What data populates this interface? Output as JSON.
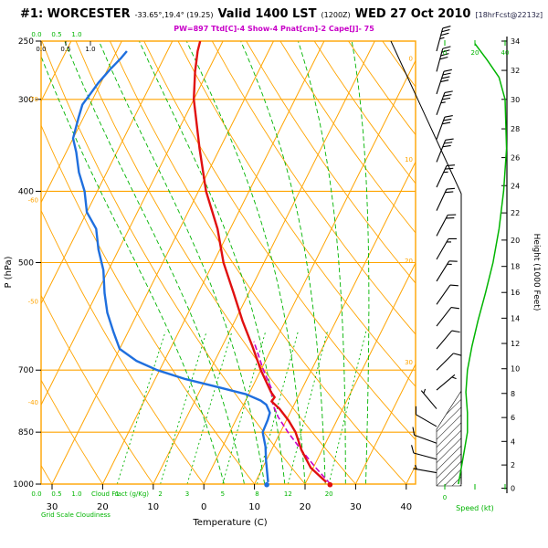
{
  "header": {
    "station": "#1: WORCESTER",
    "coords": "-33.65°,19.4° (19.25)",
    "valid": "Valid 1400 LST",
    "valid_utc": "(1200Z)",
    "date": "WED 27 Oct 2010",
    "forecast": "[18hrFcst@2213z]",
    "indices": "PW=897 Ttd[C]-4 Show-4 Pnat[cm]-2 Cape[J]- 75"
  },
  "axes": {
    "pressure_label": "P (hPa)",
    "temperature_label": "Temperature (C)",
    "height_label": "Height (1000 Feet)",
    "speed_label": "Speed (kt)",
    "cloud_scale_values": [
      "0.0",
      "0.5",
      "1.0"
    ],
    "cloud_caption_1": "Cloud Fract (g/Kg)",
    "cloud_caption_2": "Grid Scale Cloudiness"
  },
  "colors": {
    "grid": "#ffa400",
    "aux_green": "#00b400",
    "temperature": "#e01010",
    "dewpoint": "#1f6fde",
    "parcel": "#c800c8",
    "axis": "#000000"
  },
  "chart_data": {
    "type": "line",
    "subtype": "skew-t-log-p sounding",
    "title": "#1: WORCESTER Valid 1400 LST (1200Z) WED 27 Oct 2010",
    "pressure_axis": {
      "label": "P (hPa)",
      "range": [
        250,
        1000
      ],
      "ticks": [
        250,
        300,
        400,
        500,
        700,
        850,
        1000
      ],
      "gridlines": [
        300,
        400,
        500,
        700,
        850
      ]
    },
    "temp_axis": {
      "label": "Temperature (C)",
      "ticks": [
        -30,
        -20,
        -10,
        0,
        10,
        20,
        30,
        40
      ],
      "tick_labels": [
        "30",
        "20",
        "10",
        "0",
        "10",
        "20",
        "30",
        "40"
      ]
    },
    "isotherm_step": 10,
    "isotherm_edge_labels_left": [
      -40,
      -50,
      -60,
      -70
    ],
    "isotherm_edge_labels_right": [
      0,
      10,
      20,
      30
    ],
    "dry_adiabats_theta_c": [
      -30,
      -20,
      -10,
      0,
      10,
      20,
      30,
      40,
      50,
      60,
      70,
      80,
      90,
      100,
      110,
      120,
      130
    ],
    "moist_adiabats_thetaw_c": [
      4,
      8,
      12,
      16,
      20,
      24,
      28,
      32
    ],
    "mixing_ratio_g_kg": [
      1,
      2,
      3,
      5,
      8,
      12,
      20
    ],
    "height_ticks_kft": [
      [
        0,
        1013
      ],
      [
        2,
        942
      ],
      [
        4,
        875
      ],
      [
        6,
        812
      ],
      [
        8,
        753
      ],
      [
        10,
        697
      ],
      [
        12,
        644
      ],
      [
        14,
        595
      ],
      [
        16,
        549
      ],
      [
        18,
        506
      ],
      [
        20,
        466
      ],
      [
        22,
        428
      ],
      [
        24,
        393
      ],
      [
        26,
        360
      ],
      [
        28,
        329
      ],
      [
        30,
        300
      ],
      [
        32,
        274
      ],
      [
        34,
        250
      ]
    ],
    "speed_ticks_kt": [
      0,
      20,
      40
    ],
    "temperature_profile": [
      [
        994,
        24
      ],
      [
        950,
        19.5
      ],
      [
        900,
        16
      ],
      [
        850,
        13
      ],
      [
        820,
        10.5
      ],
      [
        790,
        7.5
      ],
      [
        772,
        5.2
      ],
      [
        762,
        5.4
      ],
      [
        750,
        4.2
      ],
      [
        700,
        0
      ],
      [
        650,
        -4
      ],
      [
        600,
        -8.5
      ],
      [
        550,
        -13
      ],
      [
        500,
        -18
      ],
      [
        450,
        -22.5
      ],
      [
        400,
        -28.5
      ],
      [
        350,
        -34
      ],
      [
        300,
        -40
      ],
      [
        275,
        -42.5
      ],
      [
        258,
        -44
      ],
      [
        250,
        -44.5
      ]
    ],
    "dewpoint_profile": [
      [
        994,
        12.5
      ],
      [
        930,
        10
      ],
      [
        890,
        8.5
      ],
      [
        850,
        6.5
      ],
      [
        818,
        6.3
      ],
      [
        800,
        6
      ],
      [
        780,
        4.5
      ],
      [
        770,
        3
      ],
      [
        755,
        -0.5
      ],
      [
        739,
        -6.5
      ],
      [
        720,
        -14
      ],
      [
        700,
        -20.5
      ],
      [
        680,
        -25.5
      ],
      [
        655,
        -30
      ],
      [
        620,
        -33
      ],
      [
        585,
        -36
      ],
      [
        550,
        -38.5
      ],
      [
        512,
        -41
      ],
      [
        480,
        -44
      ],
      [
        450,
        -46.5
      ],
      [
        427,
        -50
      ],
      [
        400,
        -52.5
      ],
      [
        377,
        -55.5
      ],
      [
        354,
        -58
      ],
      [
        339,
        -60
      ],
      [
        317,
        -61
      ],
      [
        305,
        -61.5
      ],
      [
        295,
        -61
      ],
      [
        285,
        -60.5
      ],
      [
        273,
        -59.5
      ],
      [
        264,
        -58.5
      ],
      [
        258,
        -58
      ]
    ],
    "parcel_profile": [
      [
        1000,
        25
      ],
      [
        950,
        20.5
      ],
      [
        900,
        16
      ],
      [
        850,
        11.5
      ],
      [
        810,
        8
      ],
      [
        780,
        5.8
      ],
      [
        765,
        5
      ],
      [
        740,
        3.8
      ],
      [
        700,
        0.5
      ],
      [
        670,
        -1.8
      ],
      [
        640,
        -4.2
      ]
    ],
    "surface_temp_marker": [
      1002,
      25
    ],
    "surface_dewpoint_marker": [
      1002,
      12.5
    ],
    "wind_barbs": [
      [
        258,
        15,
        35
      ],
      [
        275,
        15,
        40
      ],
      [
        295,
        18,
        40
      ],
      [
        315,
        20,
        35
      ],
      [
        340,
        20,
        30
      ],
      [
        365,
        22,
        30
      ],
      [
        395,
        25,
        25
      ],
      [
        425,
        25,
        20
      ],
      [
        460,
        28,
        20
      ],
      [
        495,
        30,
        15
      ],
      [
        530,
        32,
        15
      ],
      [
        570,
        35,
        10
      ],
      [
        610,
        38,
        10
      ],
      [
        655,
        40,
        10
      ],
      [
        700,
        45,
        10
      ],
      [
        745,
        50,
        5
      ],
      [
        790,
        320,
        5
      ],
      [
        835,
        300,
        10
      ],
      [
        880,
        290,
        10
      ],
      [
        925,
        285,
        10
      ],
      [
        965,
        280,
        5
      ]
    ],
    "wind_speed_profile": [
      [
        1000,
        9
      ],
      [
        950,
        11
      ],
      [
        900,
        13
      ],
      [
        850,
        15
      ],
      [
        800,
        15
      ],
      [
        750,
        14
      ],
      [
        700,
        15
      ],
      [
        650,
        18
      ],
      [
        600,
        22
      ],
      [
        550,
        27
      ],
      [
        500,
        32
      ],
      [
        450,
        36
      ],
      [
        400,
        39
      ],
      [
        350,
        41
      ],
      [
        300,
        40
      ],
      [
        280,
        36
      ],
      [
        265,
        28
      ],
      [
        252,
        20
      ]
    ]
  }
}
